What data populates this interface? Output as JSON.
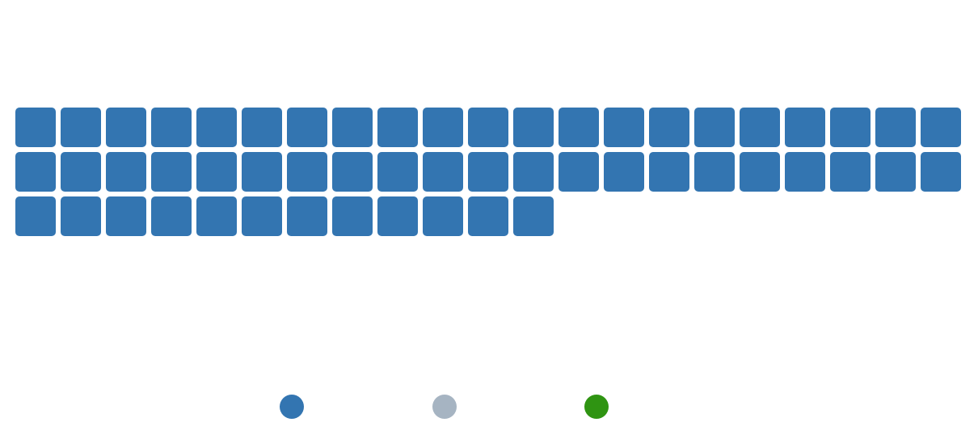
{
  "chart_data": {
    "type": "waffle",
    "title": "",
    "columns": 21,
    "legend_position": "bottom-center",
    "series": [
      {
        "value": 54,
        "color": "#3375b1"
      },
      {
        "value": 0,
        "color": "#a6b4c2"
      },
      {
        "value": 0,
        "color": "#2f9412"
      }
    ]
  }
}
